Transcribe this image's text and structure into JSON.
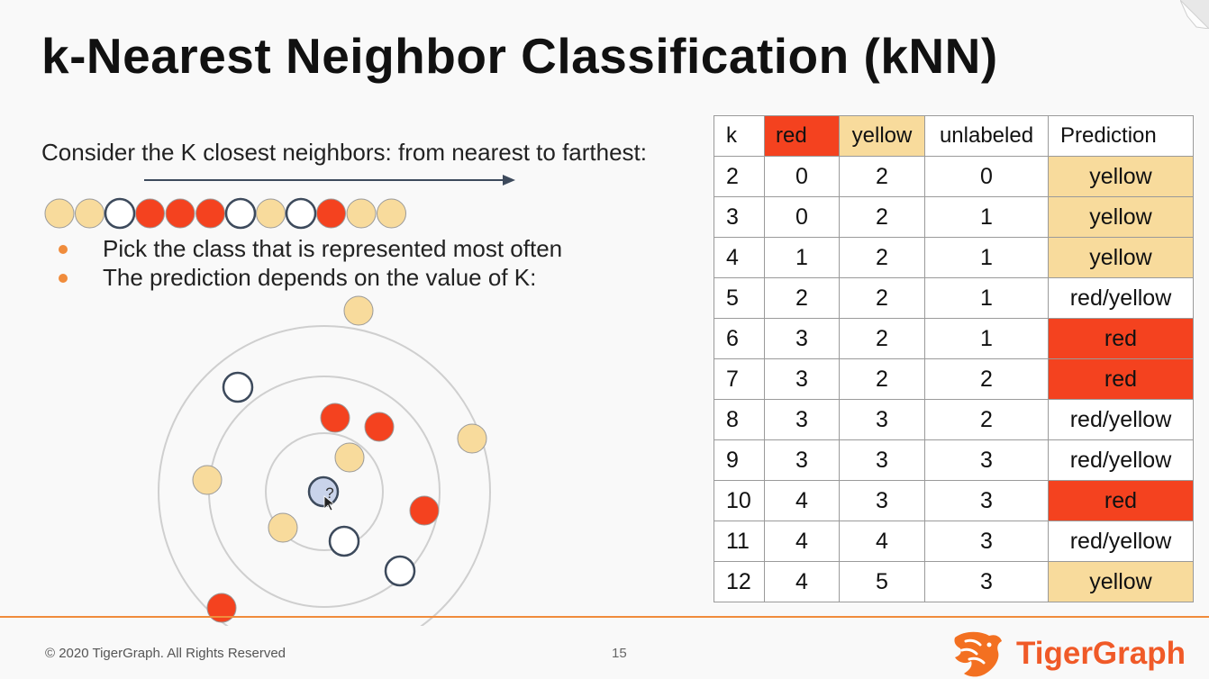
{
  "slide": {
    "title": "k-Nearest Neighbor Classification (kNN)",
    "lead": "Consider the K closest neighbors: from nearest to farthest:",
    "bullets": [
      "Pick the class that is represented most often",
      "The prediction depends on the value of K:"
    ],
    "neighbor_sequence": [
      "yellow",
      "yellow",
      "unlabeled",
      "red",
      "red",
      "red",
      "unlabeled",
      "yellow",
      "unlabeled",
      "red",
      "yellow",
      "yellow"
    ],
    "query_label": "?"
  },
  "table": {
    "headers": [
      "k",
      "red",
      "yellow",
      "unlabeled",
      "Prediction"
    ],
    "rows": [
      {
        "k": "2",
        "red": "0",
        "yellow": "2",
        "unlabeled": "0",
        "prediction": "yellow"
      },
      {
        "k": "3",
        "red": "0",
        "yellow": "2",
        "unlabeled": "1",
        "prediction": "yellow"
      },
      {
        "k": "4",
        "red": "1",
        "yellow": "2",
        "unlabeled": "1",
        "prediction": "yellow"
      },
      {
        "k": "5",
        "red": "2",
        "yellow": "2",
        "unlabeled": "1",
        "prediction": "red/yellow"
      },
      {
        "k": "6",
        "red": "3",
        "yellow": "2",
        "unlabeled": "1",
        "prediction": "red"
      },
      {
        "k": "7",
        "red": "3",
        "yellow": "2",
        "unlabeled": "2",
        "prediction": "red"
      },
      {
        "k": "8",
        "red": "3",
        "yellow": "3",
        "unlabeled": "2",
        "prediction": "red/yellow"
      },
      {
        "k": "9",
        "red": "3",
        "yellow": "3",
        "unlabeled": "3",
        "prediction": "red/yellow"
      },
      {
        "k": "10",
        "red": "4",
        "yellow": "3",
        "unlabeled": "3",
        "prediction": "red"
      },
      {
        "k": "11",
        "red": "4",
        "yellow": "4",
        "unlabeled": "3",
        "prediction": "red/yellow"
      },
      {
        "k": "12",
        "red": "4",
        "yellow": "5",
        "unlabeled": "3",
        "prediction": "yellow"
      }
    ]
  },
  "colors": {
    "red": "#f4421f",
    "yellow": "#f8db9c",
    "unlabeled": "#ffffff",
    "accent": "#f08c3c",
    "brand": "#f05a28",
    "query": "#c9d3ea"
  },
  "footer": {
    "copyright": "© 2020 TigerGraph. All Rights Reserved",
    "page_number": "15",
    "brand_name": "TigerGraph",
    "logo_icon": "tiger-head-icon"
  }
}
